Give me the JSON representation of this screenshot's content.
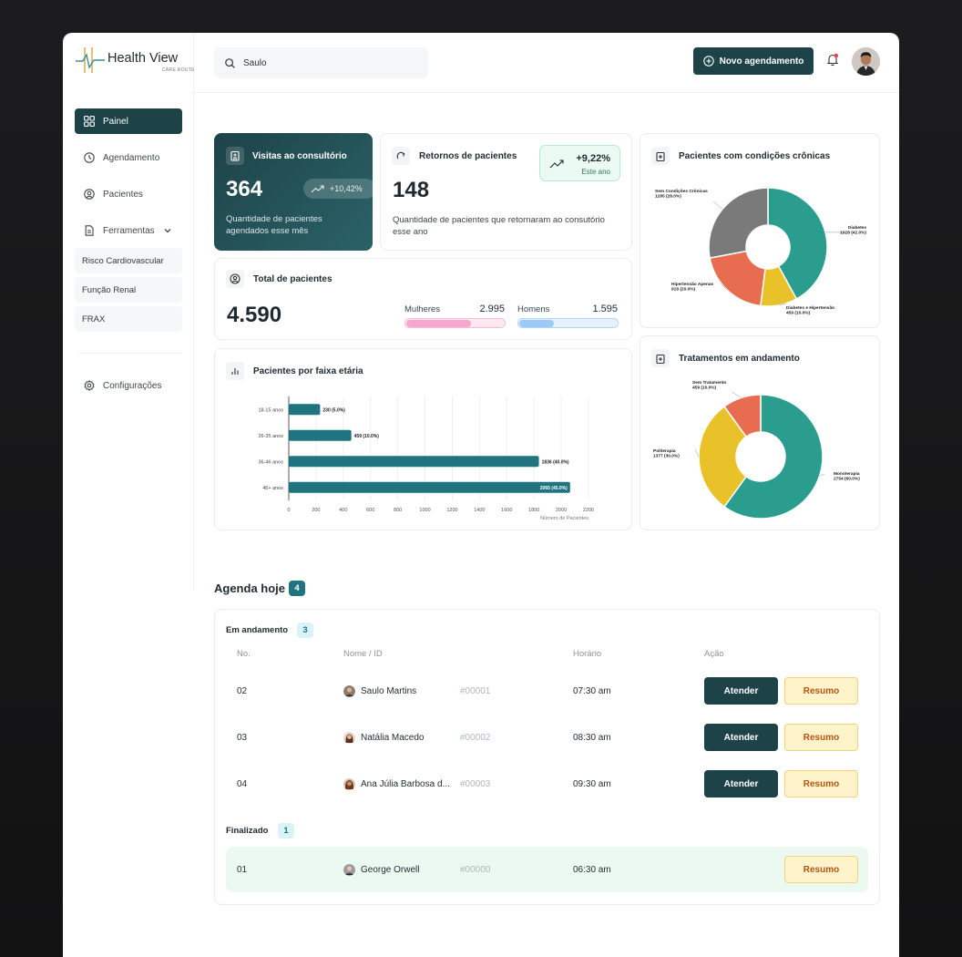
{
  "brand": {
    "title": "Health View",
    "subtitle": "CARE ROUTE"
  },
  "sidebar": {
    "items": [
      {
        "label": "Painel",
        "icon": "grid-icon"
      },
      {
        "label": "Agendamento",
        "icon": "clock-icon"
      },
      {
        "label": "Pacientes",
        "icon": "user-circle-icon"
      },
      {
        "label": "Ferramentas",
        "icon": "document-icon"
      }
    ],
    "tools": [
      "Risco Cardiovascular",
      "Função Renal",
      "FRAX"
    ],
    "settings": "Configurações"
  },
  "header": {
    "search_value": "Saulo",
    "new_button": "Novo agendamento"
  },
  "visitas": {
    "title": "Visitas ao consultório",
    "value": "364",
    "change": "+10,42%",
    "desc": "Quantidade de pacientes agendados esse mês"
  },
  "retornos": {
    "title": "Retornos de pacientes",
    "value": "148",
    "change": "+9,22%",
    "change_label": "Este ano",
    "desc": "Quantidade de pacientes que retornaram ao consutório esse ano"
  },
  "total": {
    "title": "Total de pacientes",
    "value": "4.590",
    "women_label": "Mulheres",
    "women_value": "2.995",
    "women_fraction": 0.65,
    "men_label": "Homens",
    "men_value": "1.595",
    "men_fraction": 0.35
  },
  "colors": {
    "primary": "#1d4349",
    "bar": "#1f7480",
    "teal": "#2a9d8f",
    "yellow": "#e9c22a",
    "coral": "#e86d50",
    "gray": "#7a7a7a",
    "pink": "#f7a6cf",
    "blue": "#9ccaf7"
  },
  "chart_data": [
    {
      "type": "bar",
      "orientation": "horizontal",
      "title": "Pacientes por faixa etária",
      "xlabel": "Número de Pacientes",
      "categories": [
        "18-15 anos",
        "26-35 anos",
        "36-46 anos",
        "46+ anos"
      ],
      "values": [
        230,
        459,
        1836,
        2065
      ],
      "value_labels": [
        "230 (5.0%)",
        "459 (10.0%)",
        "1836 (40.0%)",
        "2065 (45.0%)"
      ],
      "xlim": [
        0,
        2200
      ],
      "xticks": [
        0,
        200,
        400,
        600,
        800,
        1000,
        1200,
        1400,
        1600,
        1800,
        2000,
        2200
      ],
      "grid": true
    },
    {
      "type": "pie",
      "donut": true,
      "title": "Pacientes com condições crônicas",
      "slices": [
        {
          "label": "Diabetes",
          "value": 1928,
          "text": "1928 (42.0%)",
          "color": "#2a9d8f"
        },
        {
          "label": "Diabetes e Hipertensão",
          "value": 459,
          "text": "459 (10.0%)",
          "color": "#e9c22a"
        },
        {
          "label": "Hipertensão Apenas",
          "value": 918,
          "text": "918 (20.0%)",
          "color": "#e86d50"
        },
        {
          "label": "Sem Condições Crônicas",
          "value": 1285,
          "text": "1285 (28.0%)",
          "color": "#7a7a7a"
        }
      ]
    },
    {
      "type": "pie",
      "donut": true,
      "title": "Tratamentos em andamento",
      "slices": [
        {
          "label": "Monoterapia",
          "value": 2754,
          "text": "2754 (60.0%)",
          "color": "#2a9d8f"
        },
        {
          "label": "Politerapia",
          "value": 1377,
          "text": "1377 (30.0%)",
          "color": "#e9c22a"
        },
        {
          "label": "Sem Tratamento",
          "value": 459,
          "text": "459 (10.0%)",
          "color": "#e86d50"
        }
      ]
    }
  ],
  "agenda": {
    "title": "Agenda hoje",
    "count": "4",
    "in_progress_label": "Em andamento",
    "in_progress_count": "3",
    "done_label": "Finalizado",
    "done_count": "1",
    "columns": [
      "No.",
      "Nome / ID",
      "Horário",
      "Ação"
    ],
    "btn_atender": "Atender",
    "btn_resumo": "Resumo",
    "rows": [
      {
        "no": "02",
        "name": "Saulo Martins",
        "id": "#00001",
        "time": "07:30 am"
      },
      {
        "no": "03",
        "name": "Natália Macedo",
        "id": "#00002",
        "time": "08:30 am"
      },
      {
        "no": "04",
        "name": "Ana Júlia Barbosa d...",
        "id": "#00003",
        "time": "09:30 am"
      }
    ],
    "done_rows": [
      {
        "no": "01",
        "name": "George Orwell",
        "id": "#00000",
        "time": "06:30 am"
      }
    ]
  }
}
